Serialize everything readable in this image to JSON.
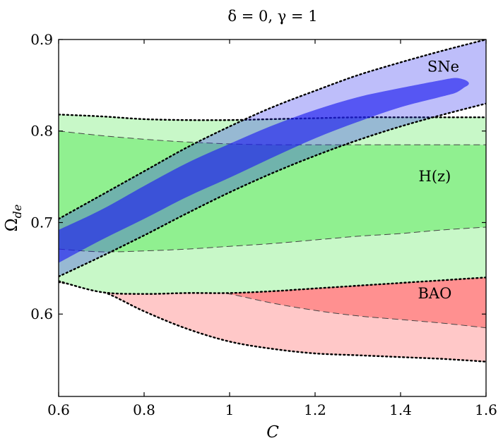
{
  "chart_data": {
    "type": "area",
    "title": "δ = 0, γ = 1",
    "xlabel": "C",
    "ylabel": "Ω",
    "ylabel_sub": "de",
    "xlim": [
      0.6,
      1.6
    ],
    "ylim": [
      0.51,
      0.9
    ],
    "xticks": [
      0.6,
      0.8,
      1.0,
      1.2,
      1.4,
      1.6
    ],
    "xtick_labels": [
      "0.6",
      "0.8",
      "1",
      "1.2",
      "1.4",
      "1.6"
    ],
    "yticks": [
      0.6,
      0.7,
      0.8,
      0.9
    ],
    "ytick_labels": [
      "0.6",
      "0.7",
      "0.8",
      "0.9"
    ],
    "annotations": [
      {
        "name": "sne",
        "text": "SNe",
        "x": 1.5,
        "y": 0.865
      },
      {
        "name": "hz",
        "text": "H(z)",
        "x": 1.48,
        "y": 0.745
      },
      {
        "name": "bao",
        "text": "BAO",
        "x": 1.48,
        "y": 0.617
      }
    ],
    "series": [
      {
        "name": "BAO 2σ",
        "color": "#ffc8c8",
        "edge": "dotted",
        "upper": {
          "x": [
            0.6,
            0.7,
            0.8,
            0.9,
            1.0,
            1.1,
            1.2,
            1.3,
            1.4,
            1.5,
            1.6
          ],
          "y": [
            0.79,
            0.758,
            0.73,
            0.716,
            0.726,
            0.722,
            0.713,
            0.707,
            0.701,
            0.697,
            0.694
          ]
        },
        "lower": {
          "x": [
            0.6,
            0.7,
            0.8,
            0.9,
            1.0,
            1.1,
            1.2,
            1.3,
            1.4,
            1.5,
            1.6
          ],
          "y": [
            0.635,
            0.625,
            0.603,
            0.584,
            0.57,
            0.562,
            0.557,
            0.555,
            0.553,
            0.551,
            0.548
          ]
        }
      },
      {
        "name": "BAO 1σ",
        "color": "#ff9090",
        "edge": "dashed",
        "upper": {
          "x": [
            0.6,
            0.7,
            0.8,
            0.9,
            1.0,
            1.1,
            1.2,
            1.3,
            1.4,
            1.5,
            1.6
          ],
          "y": [
            0.766,
            0.735,
            0.71,
            0.703,
            0.698,
            0.691,
            0.685,
            0.68,
            0.676,
            0.672,
            0.668
          ]
        },
        "lower": {
          "x": [
            0.6,
            0.7,
            0.8,
            0.9,
            1.0,
            1.1,
            1.2,
            1.3,
            1.4,
            1.5,
            1.6
          ],
          "y": [
            0.681,
            0.655,
            0.636,
            0.63,
            0.622,
            0.612,
            0.604,
            0.598,
            0.594,
            0.59,
            0.585
          ]
        }
      },
      {
        "name": "H(z) 2σ",
        "color": "#c8f8c8",
        "edge": "dotted",
        "upper": {
          "x": [
            0.6,
            0.7,
            0.8,
            0.9,
            1.0,
            1.1,
            1.2,
            1.3,
            1.4,
            1.5,
            1.6
          ],
          "y": [
            0.818,
            0.816,
            0.813,
            0.812,
            0.812,
            0.813,
            0.814,
            0.815,
            0.815,
            0.815,
            0.815
          ]
        },
        "lower": {
          "x": [
            0.6,
            0.7,
            0.8,
            0.9,
            1.0,
            1.1,
            1.2,
            1.3,
            1.4,
            1.5,
            1.6
          ],
          "y": [
            0.636,
            0.624,
            0.622,
            0.623,
            0.623,
            0.625,
            0.628,
            0.631,
            0.634,
            0.637,
            0.64
          ]
        }
      },
      {
        "name": "H(z) 1σ",
        "color": "#90f090",
        "edge": "dashed",
        "upper": {
          "x": [
            0.6,
            0.7,
            0.8,
            0.9,
            1.0,
            1.1,
            1.2,
            1.3,
            1.4,
            1.5,
            1.6
          ],
          "y": [
            0.8,
            0.795,
            0.791,
            0.788,
            0.786,
            0.785,
            0.785,
            0.785,
            0.785,
            0.785,
            0.785
          ]
        },
        "lower": {
          "x": [
            0.6,
            0.7,
            0.8,
            0.9,
            1.0,
            1.1,
            1.2,
            1.3,
            1.4,
            1.5,
            1.6
          ],
          "y": [
            0.671,
            0.668,
            0.669,
            0.671,
            0.674,
            0.677,
            0.681,
            0.685,
            0.688,
            0.692,
            0.695
          ]
        }
      },
      {
        "name": "SNe 2σ",
        "color": "rgba(40,40,240,0.30)",
        "edge": "dotted",
        "upper": {
          "x": [
            0.6,
            0.7,
            0.8,
            0.9,
            1.0,
            1.1,
            1.2,
            1.3,
            1.4,
            1.5,
            1.6
          ],
          "y": [
            0.704,
            0.73,
            0.756,
            0.782,
            0.805,
            0.826,
            0.844,
            0.861,
            0.875,
            0.888,
            0.9
          ]
        },
        "lower": {
          "x": [
            0.6,
            0.7,
            0.8,
            0.9,
            1.0,
            1.1,
            1.2,
            1.3,
            1.4,
            1.5,
            1.6
          ],
          "y": [
            0.641,
            0.663,
            0.686,
            0.71,
            0.733,
            0.754,
            0.773,
            0.79,
            0.805,
            0.818,
            0.83
          ]
        }
      },
      {
        "name": "SNe 1σ",
        "color": "rgba(30,30,240,0.65)",
        "edge": "none",
        "upper": {
          "x": [
            0.6,
            0.7,
            0.8,
            0.9,
            1.0,
            1.1,
            1.2,
            1.3,
            1.4,
            1.5,
            1.53,
            1.55
          ],
          "y": [
            0.692,
            0.714,
            0.74,
            0.765,
            0.786,
            0.806,
            0.823,
            0.837,
            0.847,
            0.856,
            0.858,
            0.856
          ]
        },
        "lower": {
          "x": [
            0.6,
            0.7,
            0.8,
            0.9,
            1.0,
            1.1,
            1.2,
            1.3,
            1.4,
            1.5,
            1.53,
            1.55
          ],
          "y": [
            0.656,
            0.681,
            0.704,
            0.728,
            0.749,
            0.771,
            0.792,
            0.81,
            0.826,
            0.838,
            0.842,
            0.848
          ]
        }
      }
    ]
  }
}
